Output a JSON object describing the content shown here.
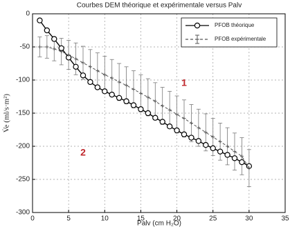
{
  "chart_data": {
    "type": "line",
    "title": "Courbes DEM théorique et expérimentale versus Palv",
    "xlabel": "Palv (cm H₂O)",
    "ylabel": "V̇e (ml/s·m²)",
    "x": [
      1,
      2,
      3,
      4,
      5,
      6,
      7,
      8,
      9,
      10,
      11,
      12,
      13,
      14,
      15,
      16,
      17,
      18,
      19,
      20,
      21,
      22,
      23,
      24,
      25,
      26,
      27,
      28,
      29,
      30
    ],
    "series": [
      {
        "name": "PFOB théorique",
        "color": "#000000",
        "values": [
          -10,
          -25,
          -38,
          -52,
          -66,
          -80,
          -93,
          -103,
          -111,
          -117,
          -122,
          -127,
          -132,
          -138,
          -144,
          -150,
          -157,
          -163,
          -170,
          -176,
          -182,
          -187,
          -192,
          -198,
          -203,
          -208,
          -213,
          -218,
          -224,
          -230
        ]
      },
      {
        "name": "PFOB expérimentale",
        "color": "#555555",
        "values": [
          -50,
          -50,
          -53,
          -57,
          -62,
          -68,
          -74,
          -80,
          -86,
          -92,
          -97,
          -103,
          -108,
          -114,
          -120,
          -126,
          -132,
          -139,
          -145,
          -152,
          -158,
          -165,
          -172,
          -179,
          -186,
          -193,
          -200,
          -208,
          -215,
          -233
        ],
        "errors": [
          15,
          17,
          18,
          20,
          22,
          24,
          25,
          26,
          27,
          28,
          28,
          28,
          28,
          28,
          28,
          28,
          28,
          28,
          28,
          28,
          28,
          28,
          28,
          28,
          28,
          28,
          28,
          28,
          28,
          28
        ]
      }
    ],
    "annotations": [
      "1",
      "2"
    ],
    "annotation_color": "#c0282d",
    "xlim": [
      0,
      35
    ],
    "xticks": [
      0,
      5,
      10,
      15,
      20,
      25,
      30,
      35
    ],
    "ylim": [
      -300,
      0
    ],
    "yticks": [
      0,
      -50,
      -100,
      -150,
      -200,
      -250,
      -300
    ],
    "grid": true,
    "legend": "upper right"
  }
}
